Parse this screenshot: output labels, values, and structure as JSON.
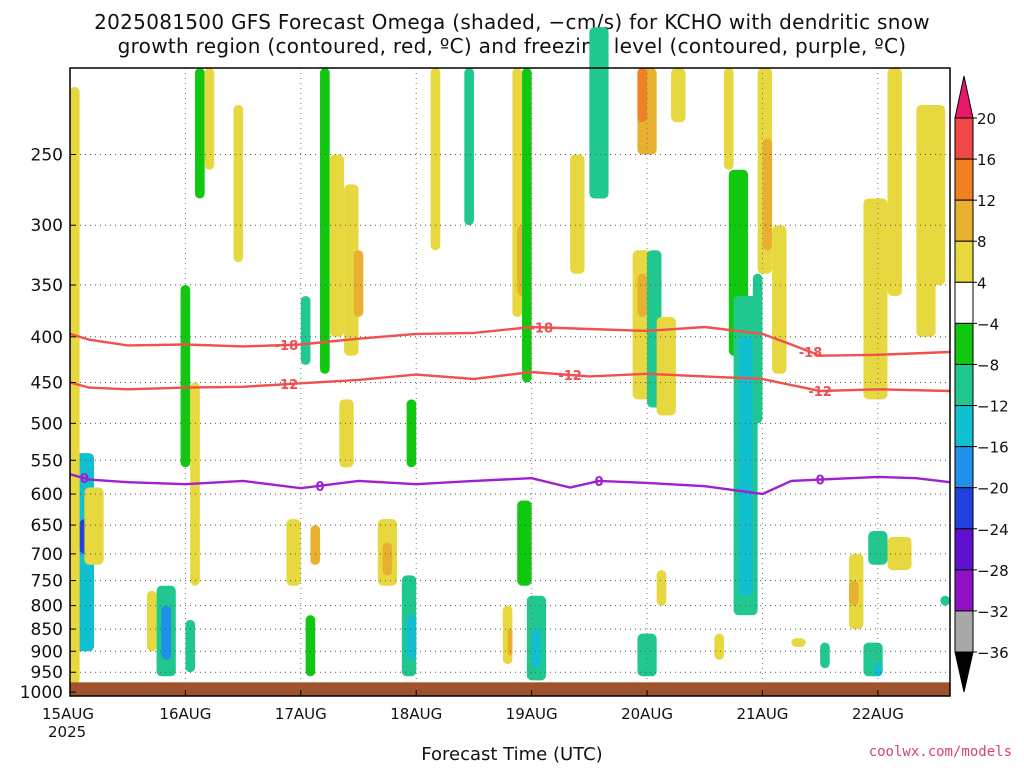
{
  "chart_data": {
    "type": "heatmap",
    "title_line1": "2025081500 GFS Forecast Omega (shaded, −cm/s) for KCHO with dendritic snow",
    "title_line2": "growth region (contoured, red, ºC) and freezing level (contoured, purple, ºC)",
    "xlabel": "Forecast Time (UTC)",
    "credit": "coolwx.com/models",
    "x_start_label": "15AUG",
    "x_year_label": "2025",
    "x_ticks": [
      "15AUG",
      "16AUG",
      "17AUG",
      "18AUG",
      "19AUG",
      "20AUG",
      "21AUG",
      "22AUG"
    ],
    "x_range_hours": [
      0,
      183
    ],
    "y_ticks": [
      250,
      300,
      350,
      400,
      450,
      500,
      550,
      600,
      650,
      700,
      750,
      800,
      850,
      900,
      950,
      1000
    ],
    "y_range_hpa": [
      200,
      1010
    ],
    "colorbar": {
      "labels": [
        "20",
        "16",
        "12",
        "8",
        "4",
        "−4",
        "−8",
        "−12",
        "−16",
        "−20",
        "−24",
        "−28",
        "−32",
        "−36"
      ],
      "colors": [
        "#e8186c",
        "#f04848",
        "#f08022",
        "#e8b030",
        "#e8d840",
        "#ffffff",
        "#10c810",
        "#20c890",
        "#10c0d0",
        "#2090e8",
        "#2040e0",
        "#6010d0",
        "#9010c8",
        "#a8a8a8",
        "#000000"
      ]
    },
    "contours": [
      {
        "label": "-18",
        "color": "#f05050",
        "labels_at_hours": [
          45,
          98,
          154
        ],
        "hours": [
          0,
          4,
          12,
          24,
          36,
          48,
          60,
          72,
          84,
          96,
          108,
          120,
          132,
          144,
          150,
          156,
          168,
          183
        ],
        "hpa": [
          397,
          403,
          409,
          408,
          410,
          408,
          402,
          397,
          396,
          390,
          392,
          394,
          390,
          397,
          408,
          420,
          419,
          416
        ]
      },
      {
        "label": "-12",
        "color": "#f05050",
        "labels_at_hours": [
          45,
          104,
          156
        ],
        "hours": [
          0,
          4,
          12,
          24,
          36,
          48,
          60,
          72,
          84,
          96,
          108,
          120,
          132,
          144,
          150,
          156,
          168,
          183
        ],
        "hpa": [
          450,
          456,
          458,
          456,
          455,
          451,
          447,
          441,
          446,
          438,
          443,
          440,
          443,
          446,
          453,
          460,
          458,
          460
        ]
      },
      {
        "label": "0",
        "color": "#a020d0",
        "labels_at_hours": [
          3,
          52,
          110,
          156
        ],
        "hours": [
          0,
          4,
          12,
          24,
          36,
          48,
          60,
          72,
          84,
          96,
          104,
          110,
          120,
          132,
          144,
          150,
          156,
          168,
          176,
          183
        ],
        "hpa": [
          570,
          578,
          582,
          585,
          580,
          591,
          580,
          585,
          580,
          576,
          590,
          580,
          583,
          588,
          600,
          580,
          578,
          574,
          576,
          582
        ]
      }
    ],
    "shaded_regions": [
      {
        "hours": [
          1,
          5
        ],
        "top": 540,
        "bottom": 900,
        "value": -14
      },
      {
        "hours": [
          2,
          4
        ],
        "top": 640,
        "bottom": 700,
        "value": -22
      },
      {
        "hours": [
          0,
          2
        ],
        "top": 210,
        "bottom": 980,
        "value": 5
      },
      {
        "hours": [
          3,
          7
        ],
        "top": 590,
        "bottom": 720,
        "value": 5
      },
      {
        "hours": [
          18,
          22
        ],
        "top": 760,
        "bottom": 960,
        "value": -10
      },
      {
        "hours": [
          19,
          21
        ],
        "top": 800,
        "bottom": 920,
        "value": -18
      },
      {
        "hours": [
          24,
          26
        ],
        "top": 830,
        "bottom": 950,
        "value": -8
      },
      {
        "hours": [
          16,
          18
        ],
        "top": 770,
        "bottom": 900,
        "value": 6
      },
      {
        "hours": [
          23,
          25
        ],
        "top": 350,
        "bottom": 560,
        "value": -6
      },
      {
        "hours": [
          26,
          28
        ],
        "top": 200,
        "bottom": 280,
        "value": -6
      },
      {
        "hours": [
          28,
          30
        ],
        "top": 200,
        "bottom": 260,
        "value": 5
      },
      {
        "hours": [
          34,
          36
        ],
        "top": 220,
        "bottom": 330,
        "value": 5
      },
      {
        "hours": [
          25,
          27
        ],
        "top": 450,
        "bottom": 760,
        "value": 5
      },
      {
        "hours": [
          49,
          51
        ],
        "top": 820,
        "bottom": 960,
        "value": -7
      },
      {
        "hours": [
          45,
          48
        ],
        "top": 640,
        "bottom": 760,
        "value": 5
      },
      {
        "hours": [
          50,
          52
        ],
        "top": 650,
        "bottom": 720,
        "value": 9
      },
      {
        "hours": [
          52,
          54
        ],
        "top": 200,
        "bottom": 440,
        "value": -7
      },
      {
        "hours": [
          54,
          57
        ],
        "top": 250,
        "bottom": 400,
        "value": 5
      },
      {
        "hours": [
          48,
          50
        ],
        "top": 360,
        "bottom": 430,
        "value": -8
      },
      {
        "hours": [
          56,
          59
        ],
        "top": 470,
        "bottom": 560,
        "value": 5
      },
      {
        "hours": [
          69,
          72
        ],
        "top": 740,
        "bottom": 960,
        "value": -8
      },
      {
        "hours": [
          70,
          72
        ],
        "top": 820,
        "bottom": 920,
        "value": -14
      },
      {
        "hours": [
          64,
          68
        ],
        "top": 640,
        "bottom": 760,
        "value": 5
      },
      {
        "hours": [
          65,
          67
        ],
        "top": 680,
        "bottom": 740,
        "value": 10
      },
      {
        "hours": [
          70,
          72
        ],
        "top": 470,
        "bottom": 560,
        "value": -7
      },
      {
        "hours": [
          57,
          60
        ],
        "top": 270,
        "bottom": 420,
        "value": 5
      },
      {
        "hours": [
          59,
          61
        ],
        "top": 320,
        "bottom": 380,
        "value": 10
      },
      {
        "hours": [
          75,
          77
        ],
        "top": 200,
        "bottom": 320,
        "value": 5
      },
      {
        "hours": [
          82,
          84
        ],
        "top": 200,
        "bottom": 300,
        "value": -8
      },
      {
        "hours": [
          92,
          94
        ],
        "top": 200,
        "bottom": 380,
        "value": 5
      },
      {
        "hours": [
          93,
          95
        ],
        "top": 300,
        "bottom": 360,
        "value": 10
      },
      {
        "hours": [
          94,
          96
        ],
        "top": 200,
        "bottom": 450,
        "value": -7
      },
      {
        "hours": [
          90,
          92
        ],
        "top": 800,
        "bottom": 930,
        "value": 6
      },
      {
        "hours": [
          91,
          92
        ],
        "top": 850,
        "bottom": 910,
        "value": 10
      },
      {
        "hours": [
          95,
          99
        ],
        "top": 780,
        "bottom": 970,
        "value": -8
      },
      {
        "hours": [
          96,
          98
        ],
        "top": 850,
        "bottom": 940,
        "value": -14
      },
      {
        "hours": [
          93,
          96
        ],
        "top": 610,
        "bottom": 760,
        "value": -7
      },
      {
        "hours": [
          104,
          107
        ],
        "top": 250,
        "bottom": 340,
        "value": 5
      },
      {
        "hours": [
          108,
          112
        ],
        "top": 180,
        "bottom": 280,
        "value": -8
      },
      {
        "hours": [
          117,
          121
        ],
        "top": 320,
        "bottom": 470,
        "value": 5
      },
      {
        "hours": [
          118,
          120
        ],
        "top": 340,
        "bottom": 380,
        "value": 10
      },
      {
        "hours": [
          120,
          123
        ],
        "top": 320,
        "bottom": 480,
        "value": -9
      },
      {
        "hours": [
          118,
          122
        ],
        "top": 860,
        "bottom": 960,
        "value": -8
      },
      {
        "hours": [
          122,
          126
        ],
        "top": 380,
        "bottom": 490,
        "value": 5
      },
      {
        "hours": [
          122,
          124
        ],
        "top": 730,
        "bottom": 800,
        "value": 5
      },
      {
        "hours": [
          118,
          122
        ],
        "top": 200,
        "bottom": 250,
        "value": 10
      },
      {
        "hours": [
          118,
          120
        ],
        "top": 200,
        "bottom": 230,
        "value": 14
      },
      {
        "hours": [
          125,
          128
        ],
        "top": 200,
        "bottom": 230,
        "value": 5
      },
      {
        "hours": [
          137,
          141
        ],
        "top": 260,
        "bottom": 420,
        "value": -7
      },
      {
        "hours": [
          138,
          143
        ],
        "top": 360,
        "bottom": 820,
        "value": -10
      },
      {
        "hours": [
          139,
          142
        ],
        "top": 400,
        "bottom": 780,
        "value": -14
      },
      {
        "hours": [
          136,
          138
        ],
        "top": 200,
        "bottom": 260,
        "value": 5
      },
      {
        "hours": [
          143,
          146
        ],
        "top": 200,
        "bottom": 340,
        "value": 5
      },
      {
        "hours": [
          144,
          146
        ],
        "top": 240,
        "bottom": 320,
        "value": 11
      },
      {
        "hours": [
          142,
          144
        ],
        "top": 340,
        "bottom": 500,
        "value": -8
      },
      {
        "hours": [
          146,
          149
        ],
        "top": 300,
        "bottom": 440,
        "value": 5
      },
      {
        "hours": [
          134,
          136
        ],
        "top": 860,
        "bottom": 920,
        "value": 5
      },
      {
        "hours": [
          150,
          153
        ],
        "top": 870,
        "bottom": 890,
        "value": 5
      },
      {
        "hours": [
          156,
          158
        ],
        "top": 880,
        "bottom": 940,
        "value": -8
      },
      {
        "hours": [
          162,
          165
        ],
        "top": 700,
        "bottom": 850,
        "value": 6
      },
      {
        "hours": [
          162,
          164
        ],
        "top": 750,
        "bottom": 800,
        "value": 10
      },
      {
        "hours": [
          166,
          170
        ],
        "top": 660,
        "bottom": 720,
        "value": -8
      },
      {
        "hours": [
          170,
          175
        ],
        "top": 670,
        "bottom": 730,
        "value": 5
      },
      {
        "hours": [
          165,
          169
        ],
        "top": 880,
        "bottom": 960,
        "value": -8
      },
      {
        "hours": [
          167,
          169
        ],
        "top": 930,
        "bottom": 960,
        "value": -14
      },
      {
        "hours": [
          165,
          170
        ],
        "top": 280,
        "bottom": 470,
        "value": 5
      },
      {
        "hours": [
          170,
          173
        ],
        "top": 200,
        "bottom": 360,
        "value": 5
      },
      {
        "hours": [
          176,
          180
        ],
        "top": 220,
        "bottom": 400,
        "value": 5
      },
      {
        "hours": [
          178,
          182
        ],
        "top": 220,
        "bottom": 350,
        "value": 5
      },
      {
        "hours": [
          181,
          183
        ],
        "top": 780,
        "bottom": 800,
        "value": -8
      }
    ]
  }
}
